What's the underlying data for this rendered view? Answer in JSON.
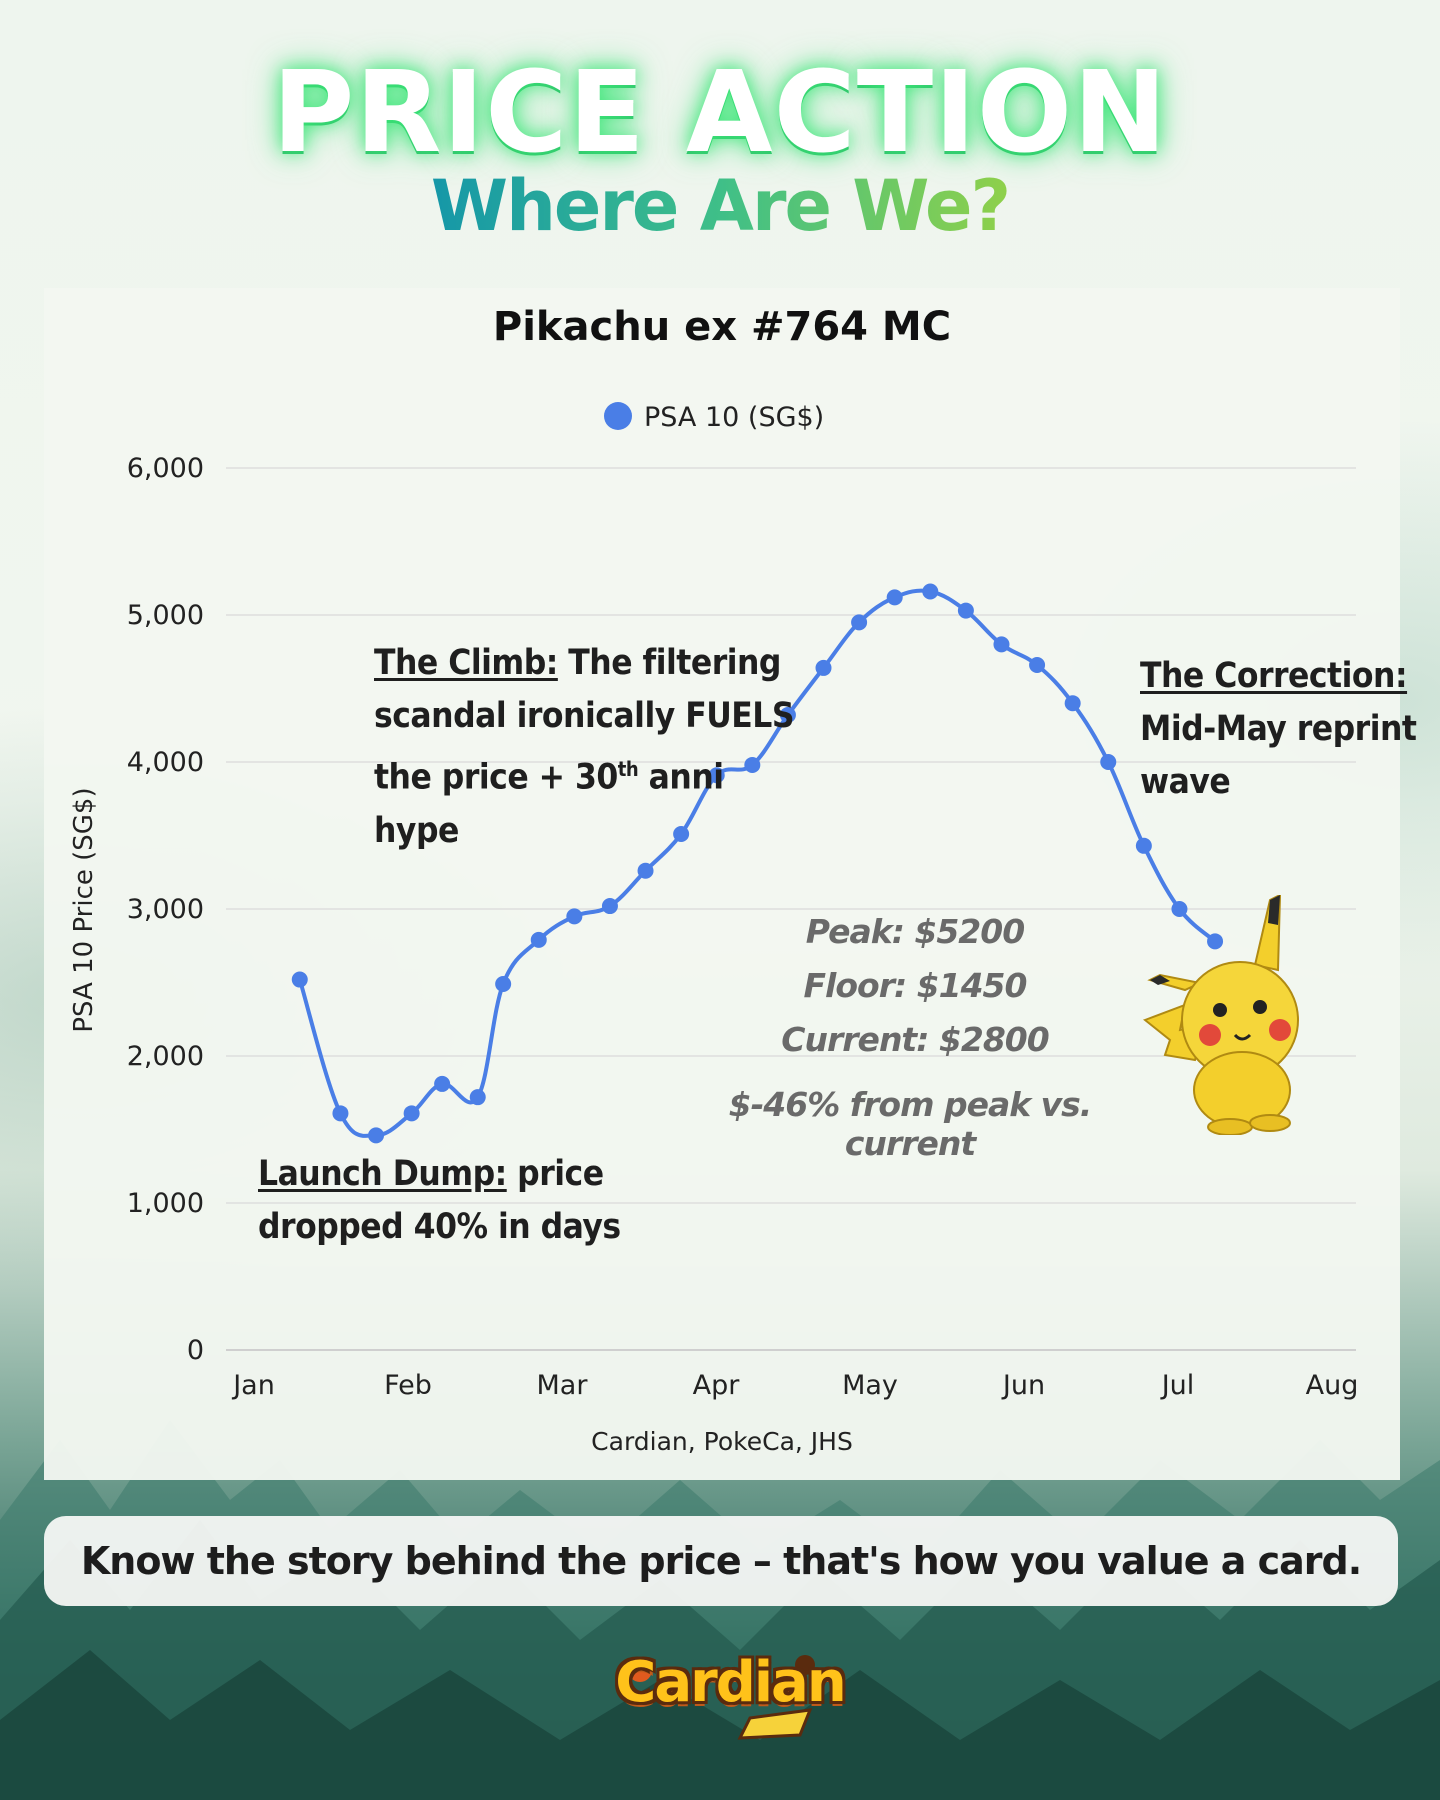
{
  "header": {
    "title": "PRICE ACTION",
    "subtitle": "Where Are We?",
    "subtitle_colors": [
      "#1597a8",
      "#3fbf88",
      "#8fd04a"
    ]
  },
  "chart_data": {
    "type": "line",
    "title": "Pikachu ex #764 MC",
    "legend_position": "top-center",
    "ylabel": "PSA 10 Price (SG$)",
    "xlabel": "",
    "source": "Cardian, PokeCa, JHS",
    "ylim": [
      0,
      6000
    ],
    "yticks": [
      "0",
      "1,000",
      "2,000",
      "3,000",
      "4,000",
      "5,000",
      "6,000"
    ],
    "xticks": [
      "Jan",
      "Feb",
      "Mar",
      "Apr",
      "May",
      "Jun",
      "Jul",
      "Aug"
    ],
    "grid": true,
    "series": [
      {
        "name": "PSA 10 (SG$)",
        "color": "#4a7ee6",
        "points": [
          {
            "x": "Jan 10",
            "y": 2520
          },
          {
            "x": "Jan 18",
            "y": 1610
          },
          {
            "x": "Jan 25",
            "y": 1460
          },
          {
            "x": "Feb 1",
            "y": 1610
          },
          {
            "x": "Feb 7",
            "y": 1810
          },
          {
            "x": "Feb 14",
            "y": 1720
          },
          {
            "x": "Feb 19",
            "y": 2490
          },
          {
            "x": "Feb 26",
            "y": 2790
          },
          {
            "x": "Mar 5",
            "y": 2950
          },
          {
            "x": "Mar 12",
            "y": 3020
          },
          {
            "x": "Mar 19",
            "y": 3260
          },
          {
            "x": "Mar 26",
            "y": 3510
          },
          {
            "x": "Apr 2",
            "y": 3910
          },
          {
            "x": "Apr 9",
            "y": 3980
          },
          {
            "x": "Apr 16",
            "y": 4320
          },
          {
            "x": "Apr 23",
            "y": 4640
          },
          {
            "x": "Apr 30",
            "y": 4950
          },
          {
            "x": "May 7",
            "y": 5120
          },
          {
            "x": "May 14",
            "y": 5160
          },
          {
            "x": "May 21",
            "y": 5030
          },
          {
            "x": "May 28",
            "y": 4800
          },
          {
            "x": "Jun 4",
            "y": 4660
          },
          {
            "x": "Jun 11",
            "y": 4400
          },
          {
            "x": "Jun 18",
            "y": 4000
          },
          {
            "x": "Jun 25",
            "y": 3430
          },
          {
            "x": "Jul 2",
            "y": 3000
          },
          {
            "x": "Jul 9",
            "y": 2780
          }
        ]
      }
    ],
    "annotations": {
      "launch_head": "Launch Dump:",
      "launch_line1": " price",
      "launch_line2": "dropped 40% in days",
      "climb_head": "The Climb:",
      "climb_line1": " The filtering",
      "climb_line2": "scandal ironically FUELS",
      "climb_line3a": "the price + 30",
      "climb_sup": "th",
      "climb_line3b": " anni",
      "climb_line4": "hype",
      "correction_head": "The Correction:",
      "correction_line1": "Mid-May reprint",
      "correction_line2": "wave",
      "peak": "Peak: $5200",
      "floor": "Floor: $1450",
      "current": "Current: $2800",
      "change": "$-46% from peak vs. current"
    }
  },
  "footer": {
    "tagline": "Know the story behind the price – that's how you value a card.",
    "logo_text": "Cardian"
  }
}
